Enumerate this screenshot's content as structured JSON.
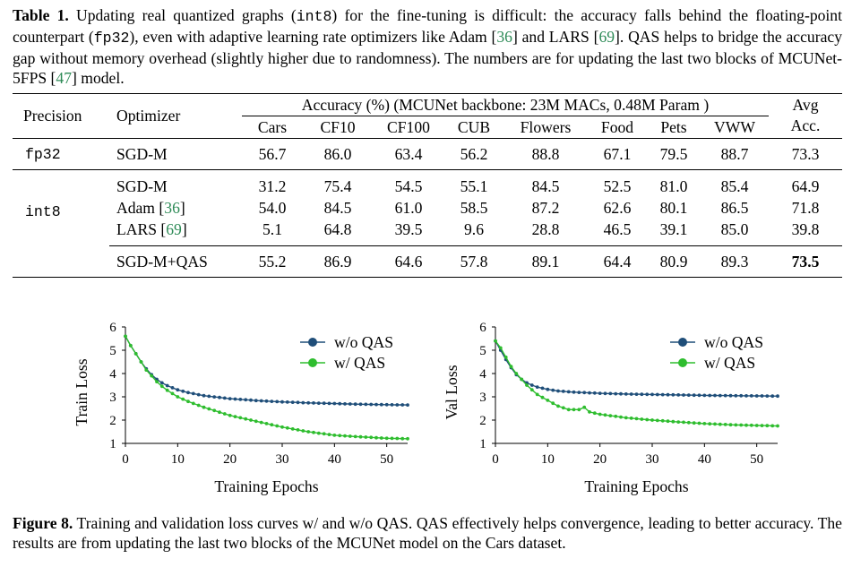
{
  "table_caption": {
    "label": "Table 1.",
    "seg1": " Updating real quantized graphs (",
    "code1": "int8",
    "seg2": ") for the fine-tuning is difficult: the accuracy falls behind the floating-point counterpart (",
    "code2": "fp32",
    "seg3": "), even with adaptive learning rate optimizers like Adam [",
    "ref1": "36",
    "seg4": "] and LARS [",
    "ref2": "69",
    "seg5": "]. QAS helps to bridge the accuracy gap without memory overhead (slightly higher due to randomness). The numbers are for updating the last two blocks of MCUNet-5FPS [",
    "ref3": "47",
    "seg6": "] model."
  },
  "table": {
    "precision_header": "Precision",
    "optimizer_header": "Optimizer",
    "accuracy_header": "Accuracy (%) (MCUNet backbone: 23M MACs, 0.48M Param )",
    "avg_header_1": "Avg",
    "avg_header_2": "Acc.",
    "datasets": [
      "Cars",
      "CF10",
      "CF100",
      "CUB",
      "Flowers",
      "Food",
      "Pets",
      "VWW"
    ],
    "fp32_group": {
      "precision": "fp32",
      "rows": [
        {
          "optimizer": "SGD-M",
          "values": [
            "56.7",
            "86.0",
            "63.4",
            "56.2",
            "88.8",
            "67.1",
            "79.5",
            "88.7"
          ],
          "avg": "73.3"
        }
      ]
    },
    "int8_group": {
      "precision": "int8",
      "rows": [
        {
          "optimizer": "SGD-M",
          "values": [
            "31.2",
            "75.4",
            "54.5",
            "55.1",
            "84.5",
            "52.5",
            "81.0",
            "85.4"
          ],
          "avg": "64.9"
        },
        {
          "optimizer": "Adam [",
          "ref": "36",
          "close": "]",
          "values": [
            "54.0",
            "84.5",
            "61.0",
            "58.5",
            "87.2",
            "62.6",
            "80.1",
            "86.5"
          ],
          "avg": "71.8"
        },
        {
          "optimizer": "LARS [",
          "ref": "69",
          "close": "]",
          "values": [
            "5.1",
            "64.8",
            "39.5",
            "9.6",
            "28.8",
            "46.5",
            "39.1",
            "85.0"
          ],
          "avg": "39.8"
        }
      ],
      "qas_row": {
        "optimizer": "SGD-M+QAS",
        "values": [
          "55.2",
          "86.9",
          "64.6",
          "57.8",
          "89.1",
          "64.4",
          "80.9",
          "89.3"
        ],
        "avg": "73.5"
      }
    }
  },
  "chart_data": [
    {
      "type": "line",
      "ylabel": "Train Loss",
      "xlabel": "Training Epochs",
      "xlim": [
        0,
        54
      ],
      "ylim": [
        1,
        6
      ],
      "xticks": [
        "0",
        "10",
        "20",
        "30",
        "40",
        "50"
      ],
      "yticks": [
        "1",
        "2",
        "3",
        "4",
        "5",
        "6"
      ],
      "legend_position": "top-right",
      "series": [
        {
          "name": "w/o QAS",
          "color": "#1f4e79",
          "x": [
            0,
            1,
            2,
            3,
            4,
            5,
            6,
            7,
            8,
            10,
            12,
            15,
            20,
            25,
            30,
            35,
            40,
            45,
            50,
            54
          ],
          "y": [
            5.6,
            5.2,
            4.85,
            4.5,
            4.2,
            3.95,
            3.75,
            3.6,
            3.48,
            3.3,
            3.18,
            3.05,
            2.92,
            2.84,
            2.78,
            2.74,
            2.71,
            2.68,
            2.66,
            2.65
          ]
        },
        {
          "name": "w/ QAS",
          "color": "#2ebd2e",
          "x": [
            0,
            1,
            2,
            3,
            4,
            5,
            6,
            7,
            8,
            10,
            12,
            15,
            20,
            25,
            30,
            35,
            40,
            45,
            50,
            54
          ],
          "y": [
            5.6,
            5.2,
            4.85,
            4.5,
            4.15,
            3.9,
            3.65,
            3.45,
            3.28,
            3.0,
            2.8,
            2.55,
            2.2,
            1.95,
            1.7,
            1.5,
            1.35,
            1.28,
            1.22,
            1.2
          ]
        }
      ]
    },
    {
      "type": "line",
      "ylabel": "Val Loss",
      "xlabel": "Training Epochs",
      "xlim": [
        0,
        54
      ],
      "ylim": [
        1,
        6
      ],
      "xticks": [
        "0",
        "10",
        "20",
        "30",
        "40",
        "50"
      ],
      "yticks": [
        "1",
        "2",
        "3",
        "4",
        "5",
        "6"
      ],
      "legend_position": "top-right",
      "series": [
        {
          "name": "w/o QAS",
          "color": "#1f4e79",
          "x": [
            0,
            1,
            2,
            3,
            4,
            5,
            6,
            7,
            8,
            10,
            12,
            15,
            20,
            25,
            30,
            35,
            40,
            45,
            50,
            54
          ],
          "y": [
            5.4,
            5.0,
            4.6,
            4.25,
            3.95,
            3.75,
            3.6,
            3.5,
            3.42,
            3.32,
            3.25,
            3.2,
            3.15,
            3.12,
            3.1,
            3.08,
            3.06,
            3.05,
            3.04,
            3.03
          ]
        },
        {
          "name": "w/ QAS",
          "color": "#2ebd2e",
          "x": [
            0,
            1,
            2,
            3,
            4,
            5,
            6,
            7,
            8,
            10,
            12,
            14,
            16,
            17,
            18,
            20,
            25,
            30,
            35,
            40,
            45,
            50,
            54
          ],
          "y": [
            5.4,
            5.1,
            4.7,
            4.3,
            4.0,
            3.75,
            3.5,
            3.3,
            3.1,
            2.85,
            2.6,
            2.45,
            2.45,
            2.55,
            2.35,
            2.25,
            2.1,
            2.0,
            1.92,
            1.85,
            1.8,
            1.77,
            1.75
          ]
        }
      ]
    }
  ],
  "figure_caption": {
    "label": "Figure 8.",
    "text": " Training and validation loss curves w/ and w/o QAS. QAS effectively helps convergence, leading to better accuracy. The results are from updating the last two blocks of the MCUNet model on the Cars dataset."
  }
}
